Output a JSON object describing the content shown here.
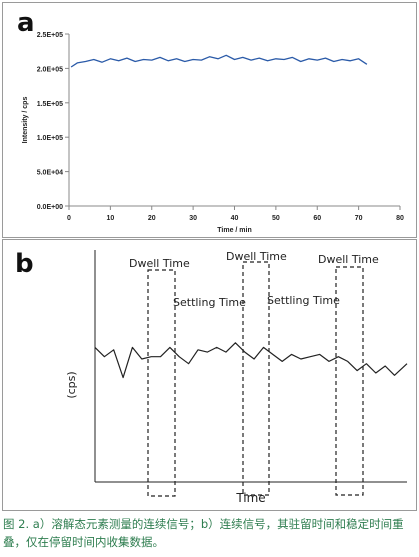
{
  "chart_data": [
    {
      "type": "line",
      "panel_label": "a",
      "xlabel": "Time / min",
      "ylabel": "Intensity / cps",
      "xlim": [
        0,
        80
      ],
      "ylim": [
        0,
        250000
      ],
      "x_ticks": [
        0,
        10,
        20,
        30,
        40,
        50,
        60,
        70,
        80
      ],
      "y_ticks": [
        0,
        50000,
        100000,
        150000,
        200000,
        250000
      ],
      "y_tick_labels": [
        "0.0E+00",
        "5.0E+04",
        "1.0E+05",
        "1.5E+05",
        "2.0E+05",
        "2.5E+05"
      ],
      "x_tick_labels": [
        "0",
        "10",
        "20",
        "30",
        "40",
        "50",
        "60",
        "70",
        "80"
      ],
      "series": [
        {
          "color": "#2a5aa8",
          "x": [
            0.5,
            2,
            4,
            6,
            8,
            10,
            12,
            14,
            16,
            18,
            20,
            22,
            24,
            26,
            28,
            30,
            32,
            34,
            36,
            38,
            40,
            42,
            44,
            46,
            48,
            50,
            52,
            54,
            56,
            58,
            60,
            62,
            64,
            66,
            68,
            70,
            72
          ],
          "y": [
            202000,
            208000,
            210000,
            213000,
            209000,
            214000,
            211000,
            215000,
            210000,
            213000,
            212000,
            216000,
            211000,
            214000,
            210000,
            213000,
            212000,
            217000,
            214000,
            219000,
            213000,
            216000,
            212000,
            215000,
            211000,
            214000,
            213000,
            216000,
            210000,
            214000,
            212000,
            215000,
            210000,
            213000,
            211000,
            214000,
            206000
          ]
        }
      ]
    },
    {
      "type": "line",
      "panel_label": "b",
      "xlabel": "Time",
      "ylabel": "(cps)",
      "series": [
        {
          "color": "#222222",
          "x": [
            0,
            3,
            6,
            9,
            12,
            15,
            18,
            21,
            24,
            27,
            30,
            33,
            36,
            39,
            42,
            45,
            48,
            51,
            54,
            57,
            60,
            63,
            66,
            69,
            72,
            75,
            78,
            81,
            84,
            87,
            90,
            93,
            96,
            100
          ],
          "y": [
            58,
            54,
            57,
            45,
            58,
            53,
            54,
            54,
            58,
            54,
            51,
            57,
            56,
            58,
            56,
            60,
            56,
            53,
            58,
            55,
            52,
            55,
            53,
            54,
            55,
            52,
            54,
            52,
            48,
            51,
            47,
            50,
            46,
            51
          ]
        }
      ],
      "annotations": [
        {
          "text": "Dwell Time",
          "window_x": [
            12.5,
            17.5
          ]
        },
        {
          "text": "Settling Time"
        },
        {
          "text": "Dwell Time",
          "window_x": [
            37.5,
            42.5
          ]
        },
        {
          "text": "Settling Time"
        },
        {
          "text": "Dwell Time",
          "window_x": [
            62,
            67
          ]
        }
      ]
    }
  ],
  "caption": "图 2. a）溶解态元素测量的连续信号；b）连续信号，其驻留时间和稳定时间重叠，仅在停留时间内收集数据。"
}
